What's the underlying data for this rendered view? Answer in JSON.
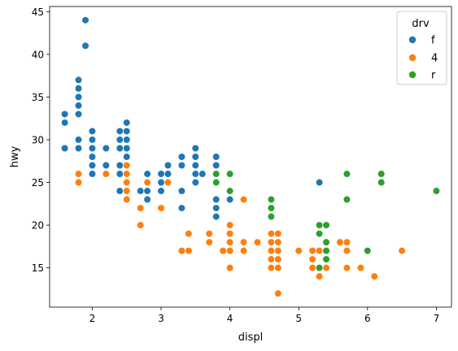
{
  "chart_data": {
    "type": "scatter",
    "title": "",
    "xlabel": "displ",
    "ylabel": "hwy",
    "xlim": [
      1.38,
      7.22
    ],
    "ylim": [
      10.4,
      45.6
    ],
    "xticks": [
      2,
      3,
      4,
      5,
      6,
      7
    ],
    "yticks": [
      15,
      20,
      25,
      30,
      35,
      40,
      45
    ],
    "grid": false,
    "legend": {
      "title": "drv",
      "placement": "top-right"
    },
    "series": [
      {
        "name": "f",
        "color": "#1f77b4",
        "points": [
          [
            1.6,
            33
          ],
          [
            1.6,
            32
          ],
          [
            1.6,
            29
          ],
          [
            1.8,
            37
          ],
          [
            1.8,
            36
          ],
          [
            1.8,
            35
          ],
          [
            1.8,
            34
          ],
          [
            1.8,
            33
          ],
          [
            1.8,
            30
          ],
          [
            1.8,
            29
          ],
          [
            1.9,
            44
          ],
          [
            1.9,
            41
          ],
          [
            2.0,
            31
          ],
          [
            2.0,
            30
          ],
          [
            2.0,
            29
          ],
          [
            2.0,
            28
          ],
          [
            2.0,
            27
          ],
          [
            2.0,
            26
          ],
          [
            2.2,
            29
          ],
          [
            2.2,
            27
          ],
          [
            2.2,
            26
          ],
          [
            2.4,
            31
          ],
          [
            2.4,
            30
          ],
          [
            2.4,
            29
          ],
          [
            2.4,
            27
          ],
          [
            2.4,
            26
          ],
          [
            2.4,
            24
          ],
          [
            2.5,
            32
          ],
          [
            2.5,
            31
          ],
          [
            2.5,
            30
          ],
          [
            2.5,
            29
          ],
          [
            2.5,
            28
          ],
          [
            2.5,
            26
          ],
          [
            2.5,
            25
          ],
          [
            2.5,
            24
          ],
          [
            2.7,
            24
          ],
          [
            2.8,
            26
          ],
          [
            2.8,
            25
          ],
          [
            2.8,
            24
          ],
          [
            2.8,
            23
          ],
          [
            3.0,
            26
          ],
          [
            3.0,
            25
          ],
          [
            3.0,
            24
          ],
          [
            3.1,
            27
          ],
          [
            3.1,
            26
          ],
          [
            3.3,
            28
          ],
          [
            3.3,
            27
          ],
          [
            3.3,
            24
          ],
          [
            3.3,
            22
          ],
          [
            3.5,
            29
          ],
          [
            3.5,
            28
          ],
          [
            3.5,
            27
          ],
          [
            3.5,
            26
          ],
          [
            3.5,
            25
          ],
          [
            3.6,
            26
          ],
          [
            3.8,
            28
          ],
          [
            3.8,
            27
          ],
          [
            3.8,
            26
          ],
          [
            3.8,
            25
          ],
          [
            3.8,
            23
          ],
          [
            3.8,
            22
          ],
          [
            3.8,
            21
          ],
          [
            4.0,
            24
          ],
          [
            4.0,
            23
          ],
          [
            5.3,
            25
          ]
        ]
      },
      {
        "name": "4",
        "color": "#ff7f0e",
        "points": [
          [
            1.8,
            26
          ],
          [
            1.8,
            25
          ],
          [
            2.2,
            26
          ],
          [
            2.5,
            27
          ],
          [
            2.5,
            26
          ],
          [
            2.5,
            25
          ],
          [
            2.5,
            24
          ],
          [
            2.5,
            23
          ],
          [
            2.7,
            22
          ],
          [
            2.7,
            20
          ],
          [
            2.8,
            25
          ],
          [
            3.0,
            22
          ],
          [
            3.1,
            25
          ],
          [
            3.3,
            17
          ],
          [
            3.4,
            19
          ],
          [
            3.4,
            17
          ],
          [
            3.7,
            19
          ],
          [
            3.7,
            18
          ],
          [
            3.9,
            17
          ],
          [
            4.0,
            20
          ],
          [
            4.0,
            19
          ],
          [
            4.0,
            18
          ],
          [
            4.0,
            17
          ],
          [
            4.0,
            15
          ],
          [
            4.2,
            23
          ],
          [
            4.2,
            18
          ],
          [
            4.2,
            17
          ],
          [
            4.4,
            18
          ],
          [
            4.6,
            19
          ],
          [
            4.6,
            18
          ],
          [
            4.6,
            17
          ],
          [
            4.6,
            16
          ],
          [
            4.6,
            15
          ],
          [
            4.7,
            19
          ],
          [
            4.7,
            18
          ],
          [
            4.7,
            17
          ],
          [
            4.7,
            16
          ],
          [
            4.7,
            15
          ],
          [
            4.7,
            12
          ],
          [
            5.0,
            17
          ],
          [
            5.2,
            17
          ],
          [
            5.2,
            16
          ],
          [
            5.2,
            15
          ],
          [
            5.3,
            19
          ],
          [
            5.3,
            17
          ],
          [
            5.3,
            15
          ],
          [
            5.3,
            14
          ],
          [
            5.4,
            17
          ],
          [
            5.4,
            15
          ],
          [
            5.6,
            18
          ],
          [
            5.7,
            18
          ],
          [
            5.7,
            17
          ],
          [
            5.7,
            15
          ],
          [
            5.9,
            15
          ],
          [
            6.1,
            14
          ],
          [
            6.5,
            17
          ]
        ]
      },
      {
        "name": "r",
        "color": "#2ca02c",
        "points": [
          [
            3.8,
            26
          ],
          [
            3.8,
            25
          ],
          [
            4.0,
            26
          ],
          [
            4.0,
            24
          ],
          [
            4.6,
            23
          ],
          [
            4.6,
            22
          ],
          [
            4.6,
            21
          ],
          [
            5.3,
            20
          ],
          [
            5.3,
            19
          ],
          [
            5.3,
            15
          ],
          [
            5.4,
            20
          ],
          [
            5.4,
            18
          ],
          [
            5.4,
            17
          ],
          [
            5.4,
            16
          ],
          [
            5.7,
            26
          ],
          [
            5.7,
            23
          ],
          [
            6.0,
            17
          ],
          [
            6.2,
            26
          ],
          [
            6.2,
            25
          ],
          [
            7.0,
            24
          ]
        ]
      }
    ]
  }
}
